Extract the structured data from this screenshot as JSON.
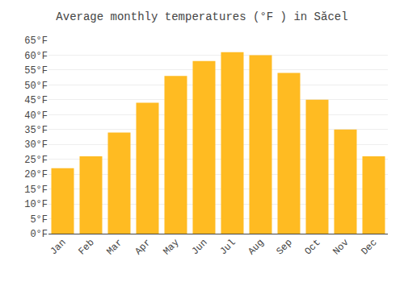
{
  "chart_data": {
    "type": "bar",
    "title": "Average monthly temperatures (°F ) in Săcel",
    "categories": [
      "Jan",
      "Feb",
      "Mar",
      "Apr",
      "May",
      "Jun",
      "Jul",
      "Aug",
      "Sep",
      "Oct",
      "Nov",
      "Dec"
    ],
    "values": [
      22,
      26,
      34,
      44,
      53,
      58,
      61,
      60,
      54,
      45,
      35,
      26
    ],
    "color": "#FFBB22",
    "ylim": [
      0,
      65
    ],
    "yticks": [
      {
        "value": 0,
        "label": "0°F"
      },
      {
        "value": 5,
        "label": "5°F"
      },
      {
        "value": 10,
        "label": "10°F"
      },
      {
        "value": 15,
        "label": "15°F"
      },
      {
        "value": 20,
        "label": "20°F"
      },
      {
        "value": 25,
        "label": "25°F"
      },
      {
        "value": 30,
        "label": "30°F"
      },
      {
        "value": 35,
        "label": "35°F"
      },
      {
        "value": 40,
        "label": "40°F"
      },
      {
        "value": 45,
        "label": "45°F"
      },
      {
        "value": 50,
        "label": "50°F"
      },
      {
        "value": 55,
        "label": "55°F"
      },
      {
        "value": 60,
        "label": "60°F"
      },
      {
        "value": 65,
        "label": "65°F"
      }
    ],
    "grid": true
  }
}
